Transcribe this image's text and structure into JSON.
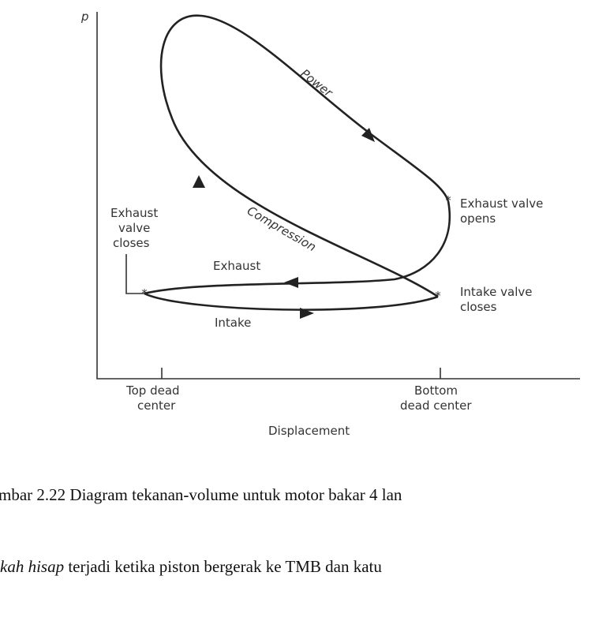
{
  "figure": {
    "axis_label_y": "p",
    "labels": {
      "power": "Power",
      "compression": "Compression",
      "exhaust_valve_closes": [
        "Exhaust",
        "valve",
        "closes"
      ],
      "exhaust": "Exhaust",
      "intake": "Intake",
      "exhaust_valve_opens": [
        "Exhaust valve",
        "opens"
      ],
      "intake_valve_closes": [
        "Intake valve",
        "closes"
      ],
      "top_dead_center": [
        "Top dead",
        "center"
      ],
      "bottom_dead_center": [
        "Bottom",
        "dead center"
      ],
      "axis_label_x": "Displacement"
    }
  },
  "caption": "mbar 2.22 Diagram tekanan-volume untuk motor bakar 4 lan",
  "body": {
    "emphasis": "kah hisap",
    "text": " terjadi ketika piston bergerak ke TMB dan katu"
  }
}
